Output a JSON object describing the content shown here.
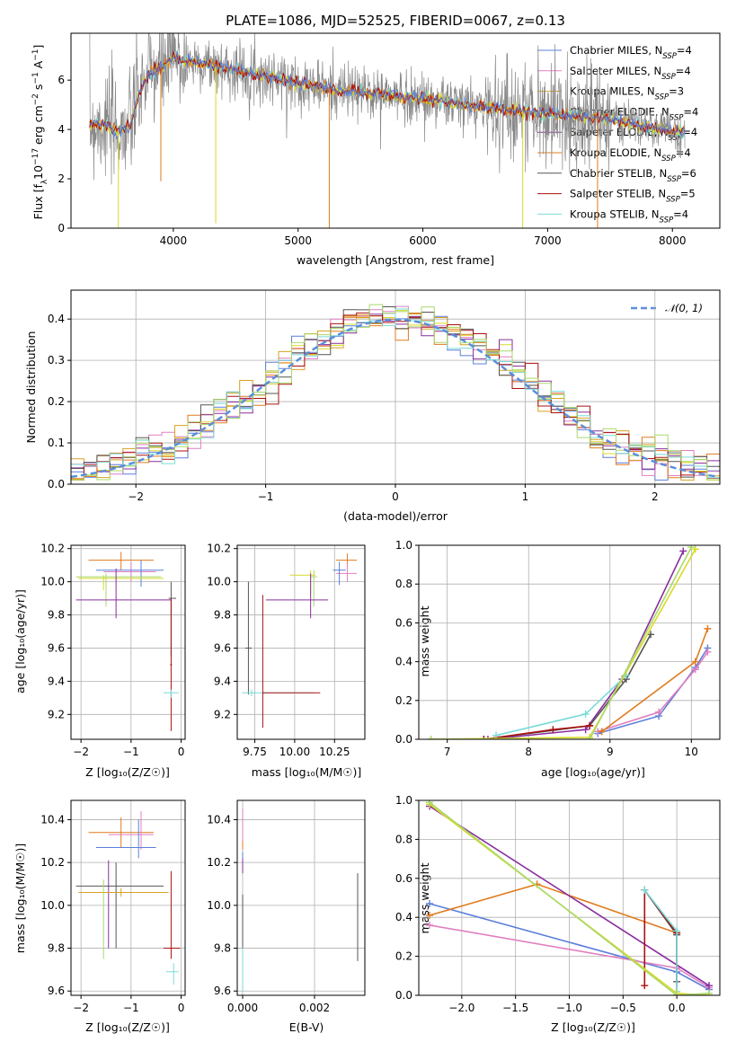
{
  "colors": {
    "Chabrier MILES": "#5b7fd9",
    "Salpeter MILES": "#e07fc0",
    "Kroupa MILES": "#d9a020",
    "Chabrier ELODIE": "#d9d92a",
    "Salpeter ELODIE": "#8a2e9e",
    "Kroupa ELODIE": "#e07b1f",
    "Chabrier STELIB": "#555555",
    "Salpeter STELIB": "#aa1010",
    "Kroupa STELIB": "#7adbd8",
    "extra1": "#a9d96b",
    "gaussian": "#5b8fd9",
    "data": "#888888"
  },
  "chart_data": [
    {
      "id": "spectrum",
      "type": "line",
      "title": "PLATE=1086, MJD=52525, FIBERID=0067, z=0.13",
      "xlabel": "wavelength [Angstrom, rest frame]",
      "ylabel_parts": [
        "Flux [f",
        "λ",
        "10",
        "−17",
        " erg cm",
        "−2",
        " s",
        "−1",
        " A",
        "−1",
        "]"
      ],
      "xlim": [
        3180,
        8380
      ],
      "ylim": [
        0,
        7.9
      ],
      "xticks": [
        "4000",
        "5000",
        "6000",
        "7000",
        "8000"
      ],
      "yticks": [
        "0",
        "2",
        "4",
        "6"
      ],
      "legend_position": "upper right",
      "legend": [
        {
          "base": "Chabrier MILES, N",
          "sub": "SSP",
          "tail": "=4",
          "key": "Chabrier MILES"
        },
        {
          "base": "Salpeter MILES, N",
          "sub": "SSP",
          "tail": "=4",
          "key": "Salpeter MILES"
        },
        {
          "base": "Kroupa MILES, N",
          "sub": "SSP",
          "tail": "=3",
          "key": "Kroupa MILES"
        },
        {
          "base": "Chabrier ELODIE, N",
          "sub": "SSP",
          "tail": "=4",
          "key": "Chabrier ELODIE"
        },
        {
          "base": "Salpeter ELODIE, N",
          "sub": "SSP",
          "tail": "=4",
          "key": "Salpeter ELODIE"
        },
        {
          "base": "Kroupa ELODIE, N",
          "sub": "SSP",
          "tail": "=4",
          "key": "Kroupa ELODIE"
        },
        {
          "base": "Chabrier STELIB, N",
          "sub": "SSP",
          "tail": "=6",
          "key": "Chabrier STELIB"
        },
        {
          "base": "Salpeter STELIB, N",
          "sub": "SSP",
          "tail": "=5",
          "key": "Salpeter STELIB"
        },
        {
          "base": "Kroupa STELIB, N",
          "sub": "SSP",
          "tail": "=4",
          "key": "Kroupa STELIB"
        }
      ],
      "continuum": {
        "x": [
          3330,
          3450,
          3550,
          3650,
          3720,
          3800,
          3900,
          4000,
          4100,
          4300,
          4500,
          4700,
          4900,
          5100,
          5300,
          5500,
          5700,
          5900,
          6100,
          6300,
          6500,
          6700,
          6900,
          7100,
          7300,
          7500,
          7700,
          7900,
          8100
        ],
        "y": [
          4.2,
          4.2,
          3.9,
          4.1,
          5.4,
          6.2,
          6.5,
          6.9,
          6.8,
          6.6,
          6.4,
          6.2,
          6.0,
          5.8,
          5.6,
          5.5,
          5.4,
          5.3,
          5.2,
          5.0,
          4.9,
          4.8,
          4.7,
          4.6,
          4.5,
          4.4,
          4.2,
          4.0,
          3.9
        ]
      }
    },
    {
      "id": "residuals",
      "type": "histogram",
      "xlabel": "(data-model)/error",
      "ylabel": "Normed distribution",
      "xlim": [
        -2.5,
        2.5
      ],
      "ylim": [
        0,
        0.47
      ],
      "xticks": [
        "−2",
        "−1",
        "0",
        "1",
        "2"
      ],
      "yticks": [
        "0.0",
        "0.1",
        "0.2",
        "0.3",
        "0.4"
      ],
      "bin_width": 0.1,
      "legend": "𝒩(0, 1)"
    },
    {
      "id": "age-vs-Z",
      "type": "errorbar",
      "xlabel": "Z [log₁₀(Z/Z☉)]",
      "ylabel": "age  [log₁₀(age/yr)]",
      "xlim": [
        -2.2,
        0.08
      ],
      "ylim": [
        9.05,
        10.22
      ],
      "xticks": [
        "−2",
        "−1",
        "0"
      ],
      "yticks": [
        "9.2",
        "9.4",
        "9.6",
        "9.8",
        "10.0",
        "10.2"
      ],
      "points": [
        {
          "s": "Kroupa ELODIE",
          "x": -1.2,
          "xe": [
            -1.85,
            -0.55
          ],
          "y": 10.13,
          "ye": [
            10.07,
            10.18
          ]
        },
        {
          "s": "Salpeter MILES",
          "x": -1.0,
          "xe": [
            -1.55,
            -0.5
          ],
          "y": 10.06,
          "ye": [
            10.0,
            10.12
          ]
        },
        {
          "s": "Chabrier MILES",
          "x": -0.8,
          "xe": [
            -1.7,
            -0.35
          ],
          "y": 10.07,
          "ye": [
            9.97,
            10.13
          ]
        },
        {
          "s": "extra1",
          "x": -1.5,
          "xe": [
            -2.1,
            -0.4
          ],
          "y": 10.03,
          "ye": [
            9.85,
            10.05
          ]
        },
        {
          "s": "Chabrier ELODIE",
          "x": -1.55,
          "xe": [
            -2.05,
            -0.35
          ],
          "y": 10.02,
          "ye": [
            9.95,
            10.04
          ]
        },
        {
          "s": "Salpeter ELODIE",
          "x": -1.3,
          "xe": [
            -2.1,
            -0.2
          ],
          "y": 9.89,
          "ye": [
            9.78,
            10.08
          ]
        },
        {
          "s": "Chabrier STELIB",
          "x": -0.2,
          "xe": [
            -0.25,
            -0.1
          ],
          "y": 9.9,
          "ye": [
            9.55,
            10.0
          ]
        },
        {
          "s": "Salpeter STELIB",
          "x": -0.2,
          "xe": [
            -0.22,
            -0.18
          ],
          "y": 9.5,
          "ye": [
            9.1,
            9.9
          ]
        },
        {
          "s": "Kroupa STELIB",
          "x": -0.2,
          "xe": [
            -0.35,
            -0.05
          ],
          "y": 9.33,
          "ye": [
            9.3,
            9.35
          ]
        }
      ]
    },
    {
      "id": "age-vs-mass",
      "type": "errorbar",
      "xlabel": "mass [log₁₀(M/M☉)]",
      "xlim": [
        9.64,
        10.44
      ],
      "ylim": [
        9.05,
        10.22
      ],
      "xticks": [
        "9.75",
        "10.00",
        "10.25"
      ],
      "yticks": [
        "9.2",
        "9.4",
        "9.6",
        "9.8",
        "10.0",
        "10.2"
      ],
      "points": [
        {
          "s": "Kroupa ELODIE",
          "x": 10.33,
          "xe": [
            10.26,
            10.39
          ],
          "y": 10.13,
          "ye": [
            10.08,
            10.17
          ]
        },
        {
          "s": "Salpeter MILES",
          "x": 10.33,
          "xe": [
            10.26,
            10.39
          ],
          "y": 10.05,
          "ye": [
            10.0,
            10.11
          ]
        },
        {
          "s": "Chabrier MILES",
          "x": 10.28,
          "xe": [
            10.24,
            10.32
          ],
          "y": 10.07,
          "ye": [
            9.98,
            10.12
          ]
        },
        {
          "s": "Chabrier ELODIE",
          "x": 10.1,
          "xe": [
            9.97,
            10.13
          ],
          "y": 10.04,
          "ye": [
            9.92,
            10.07
          ]
        },
        {
          "s": "extra1",
          "x": 10.12,
          "xe": [
            10.1,
            10.14
          ],
          "y": 10.03,
          "ye": [
            9.85,
            10.07
          ]
        },
        {
          "s": "Salpeter ELODIE",
          "x": 10.1,
          "xe": [
            9.82,
            10.21
          ],
          "y": 9.89,
          "ye": [
            9.78,
            10.05
          ]
        },
        {
          "s": "Chabrier STELIB",
          "x": 9.71,
          "xe": [
            9.69,
            9.73
          ],
          "y": 9.6,
          "ye": [
            9.32,
            10.0
          ]
        },
        {
          "s": "Kroupa STELIB",
          "x": 9.73,
          "xe": [
            9.67,
            10.12
          ],
          "y": 9.33,
          "ye": [
            9.31,
            9.35
          ]
        },
        {
          "s": "Salpeter STELIB",
          "x": 9.8,
          "xe": [
            9.8,
            10.16
          ],
          "y": 9.33,
          "ye": [
            9.12,
            9.92
          ]
        }
      ]
    },
    {
      "id": "mass-weight-vs-age",
      "type": "line",
      "xlabel": "age  [log₁₀(age/yr)]",
      "ylabel": "mass weight",
      "xlim": [
        6.65,
        10.35
      ],
      "ylim": [
        0,
        1
      ],
      "xticks": [
        "7",
        "8",
        "9",
        "10"
      ],
      "yticks": [
        "0.0",
        "0.2",
        "0.4",
        "0.6",
        "0.8",
        "1.0"
      ],
      "series": [
        {
          "s": "Chabrier MILES",
          "x": [
            8.85,
            9.6,
            10.05,
            10.2
          ],
          "y": [
            0.03,
            0.12,
            0.37,
            0.47
          ]
        },
        {
          "s": "Salpeter MILES",
          "x": [
            8.85,
            9.6,
            10.05,
            10.2
          ],
          "y": [
            0.04,
            0.14,
            0.36,
            0.45
          ]
        },
        {
          "s": "Kroupa ELODIE",
          "x": [
            8.9,
            10.05,
            10.2
          ],
          "y": [
            0.04,
            0.4,
            0.57
          ]
        },
        {
          "s": "Salpeter ELODIE",
          "x": [
            7.5,
            8.7,
            9.15,
            9.9
          ],
          "y": [
            0.0,
            0.05,
            0.31,
            0.97
          ]
        },
        {
          "s": "Chabrier STELIB",
          "x": [
            7.45,
            8.75,
            9.2,
            9.5
          ],
          "y": [
            0.0,
            0.07,
            0.31,
            0.54
          ]
        },
        {
          "s": "Salpeter STELIB",
          "x": [
            7.45,
            8.3,
            8.75
          ],
          "y": [
            0.0,
            0.05,
            0.07
          ]
        },
        {
          "s": "Kroupa STELIB",
          "x": [
            7.6,
            8.7,
            9.2
          ],
          "y": [
            0.02,
            0.13,
            0.33
          ]
        },
        {
          "s": "Chabrier ELODIE",
          "x": [
            6.8,
            8.75,
            10.05
          ],
          "y": [
            0.0,
            0.01,
            0.98
          ]
        },
        {
          "s": "extra1",
          "x": [
            6.8,
            8.75,
            10.0
          ],
          "y": [
            0.0,
            0.0,
            0.99
          ]
        }
      ]
    },
    {
      "id": "mass-vs-Z",
      "type": "errorbar",
      "xlabel": "Z [log₁₀(Z/Z☉)]",
      "ylabel": "mass [log₁₀(M/M☉)]",
      "xlim": [
        -2.2,
        0.08
      ],
      "ylim": [
        9.58,
        10.49
      ],
      "xticks": [
        "−2",
        "−1",
        "0"
      ],
      "yticks": [
        "9.6",
        "9.8",
        "10.0",
        "10.2",
        "10.4"
      ],
      "points": [
        {
          "s": "Kroupa ELODIE",
          "x": -1.2,
          "xe": [
            -1.85,
            -0.55
          ],
          "y": 10.34,
          "ye": [
            10.27,
            10.41
          ]
        },
        {
          "s": "Salpeter MILES",
          "x": -0.8,
          "xe": [
            -1.45,
            -0.55
          ],
          "y": 10.33,
          "ye": [
            10.26,
            10.44
          ]
        },
        {
          "s": "Chabrier MILES",
          "x": -0.85,
          "xe": [
            -1.7,
            -0.5
          ],
          "y": 10.27,
          "ye": [
            10.22,
            10.4
          ]
        },
        {
          "s": "Salpeter ELODIE",
          "x": -1.45,
          "xe": [
            -1.45,
            -1.45
          ],
          "y": 10.0,
          "ye": [
            9.8,
            10.21
          ]
        },
        {
          "s": "Chabrier STELIB",
          "x": -1.3,
          "xe": [
            -2.1,
            -0.35
          ],
          "y": 10.09,
          "ye": [
            9.8,
            10.2
          ]
        },
        {
          "s": "Kroupa MILES",
          "x": -1.2,
          "xe": [
            -2.05,
            -0.25
          ],
          "y": 10.06,
          "ye": [
            10.04,
            10.08
          ]
        },
        {
          "s": "extra1",
          "x": -1.55,
          "xe": [
            -1.55,
            -1.55
          ],
          "y": 9.95,
          "ye": [
            9.75,
            10.12
          ]
        },
        {
          "s": "Salpeter STELIB",
          "x": -0.2,
          "xe": [
            -0.35,
            -0.02
          ],
          "y": 9.8,
          "ye": [
            9.75,
            10.16
          ]
        },
        {
          "s": "Kroupa STELIB",
          "x": -0.15,
          "xe": [
            -0.3,
            -0.05
          ],
          "y": 9.69,
          "ye": [
            9.63,
            9.73
          ]
        }
      ]
    },
    {
      "id": "mass-vs-EBV",
      "type": "errorbar",
      "xlabel": "E(B-V)",
      "xlim": [
        -0.00015,
        0.0034
      ],
      "ylim": [
        9.58,
        10.49
      ],
      "xticks": [
        "0.000",
        "0.002"
      ],
      "yticks": [
        "9.6",
        "9.8",
        "10.0",
        "10.2",
        "10.4"
      ],
      "points": [
        {
          "s": "Kroupa ELODIE",
          "x": 0.0,
          "xe": [
            0.0,
            0.0
          ],
          "y": 10.35,
          "ye": [
            10.26,
            10.44
          ]
        },
        {
          "s": "Salpeter MILES",
          "x": 0.0,
          "xe": [
            0.0,
            0.0
          ],
          "y": 10.4,
          "ye": [
            10.3,
            10.45
          ]
        },
        {
          "s": "Chabrier MILES",
          "x": 0.0,
          "xe": [
            0.0,
            0.0
          ],
          "y": 10.22,
          "ye": [
            10.18,
            10.25
          ]
        },
        {
          "s": "Salpeter ELODIE",
          "x": 0.0,
          "xe": [
            0.0,
            0.0
          ],
          "y": 10.18,
          "ye": [
            10.15,
            10.22
          ]
        },
        {
          "s": "Chabrier STELIB",
          "x": 0.0,
          "xe": [
            0.0,
            0.0
          ],
          "y": 9.9,
          "ye": [
            9.65,
            10.05
          ]
        },
        {
          "s": "Kroupa STELIB",
          "x": 0.0,
          "xe": [
            0.0,
            0.0
          ],
          "y": 9.7,
          "ye": [
            9.6,
            9.8
          ]
        },
        {
          "s": "extra1",
          "x": 0.0032,
          "xe": [
            0.0032,
            0.0032
          ],
          "y": 9.95,
          "ye": [
            9.75,
            10.12
          ]
        },
        {
          "s": "Chabrier STELIB",
          "x": 0.0032,
          "xe": [
            0.0032,
            0.0032
          ],
          "y": 9.95,
          "ye": [
            9.74,
            10.15
          ]
        }
      ]
    },
    {
      "id": "mass-weight-vs-Z",
      "type": "line",
      "xlabel": "Z [log₁₀(Z/Z☉)]",
      "ylabel": "mass weight",
      "xlim": [
        -2.4,
        0.4
      ],
      "ylim": [
        0,
        1
      ],
      "xticks": [
        "−2.0",
        "−1.5",
        "−1.0",
        "−0.5",
        "0.0"
      ],
      "yticks": [
        "0.0",
        "0.2",
        "0.4",
        "0.6",
        "0.8",
        "1.0"
      ],
      "series": [
        {
          "s": "Chabrier MILES",
          "x": [
            -2.3,
            0.0,
            0.3
          ],
          "y": [
            0.47,
            0.12,
            0.03
          ]
        },
        {
          "s": "Salpeter MILES",
          "x": [
            -2.3,
            0.0,
            0.3
          ],
          "y": [
            0.36,
            0.14,
            0.04
          ]
        },
        {
          "s": "Kroupa ELODIE",
          "x": [
            -2.3,
            -1.3,
            0.0
          ],
          "y": [
            0.41,
            0.57,
            0.32
          ]
        },
        {
          "s": "Salpeter ELODIE",
          "x": [
            -2.3,
            0.3
          ],
          "y": [
            0.97,
            0.05
          ]
        },
        {
          "s": "Chabrier STELIB",
          "x": [
            -0.3,
            0.0,
            0.0
          ],
          "y": [
            0.54,
            0.31,
            0.07
          ]
        },
        {
          "s": "Salpeter STELIB",
          "x": [
            -0.3,
            -0.3,
            0.0,
            0.0
          ],
          "y": [
            0.05,
            0.54,
            0.32,
            0.0
          ]
        },
        {
          "s": "Kroupa STELIB",
          "x": [
            -0.3,
            0.0,
            0.0
          ],
          "y": [
            0.54,
            0.33,
            0.02
          ]
        },
        {
          "s": "Chabrier ELODIE",
          "x": [
            -2.3,
            0.0,
            0.3
          ],
          "y": [
            0.98,
            0.01,
            0.0
          ]
        },
        {
          "s": "extra1",
          "x": [
            -2.3,
            0.0,
            0.3
          ],
          "y": [
            0.99,
            0.0,
            0.01
          ]
        }
      ]
    }
  ]
}
